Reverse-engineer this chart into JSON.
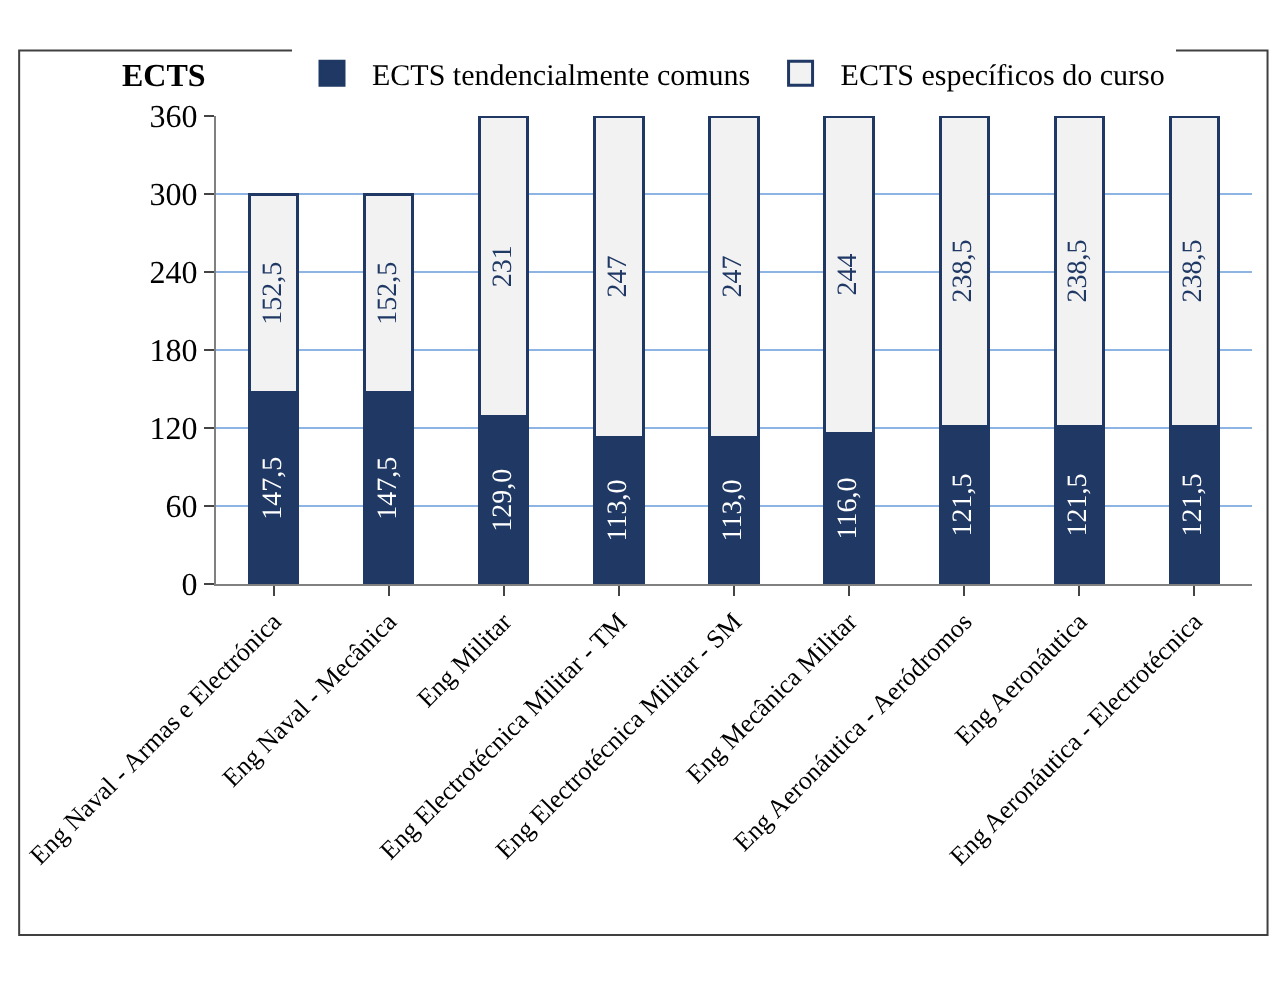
{
  "chart_data": {
    "type": "bar",
    "stacked": true,
    "ylabel": "ECTS",
    "categories": [
      "Eng Naval - Armas e Electrónica",
      "Eng Naval - Mecânica",
      "Eng Militar",
      "Eng Electrotécnica Militar - TM",
      "Eng Electrotécnica Militar - SM",
      "Eng Mecânica Militar",
      "Eng Aeronáutica - Aeródromos",
      "Eng Aeronáutica",
      "Eng Aeronáutica - Electrotécnica"
    ],
    "series": [
      {
        "name": "ECTS tendencialmente comuns",
        "color": "#1f3864",
        "values": [
          147.5,
          147.5,
          129,
          113,
          113,
          116,
          121.5,
          121.5,
          121.5
        ],
        "value_labels": [
          "147,5",
          "147,5",
          "129,0",
          "113,0",
          "113,0",
          "116,0",
          "121,5",
          "121,5",
          "121,5"
        ]
      },
      {
        "name": "ECTS específicos do curso",
        "color": "#f2f2f2",
        "values": [
          152.5,
          152.5,
          231,
          247,
          247,
          244,
          238.5,
          238.5,
          238.5
        ],
        "value_labels": [
          "152,5",
          "152,5",
          "231",
          "247",
          "247",
          "244",
          "238,5",
          "238,5",
          "238,5"
        ]
      }
    ],
    "ylim": [
      0,
      360
    ],
    "yticks": [
      0,
      60,
      120,
      180,
      240,
      300,
      360
    ],
    "grid": "y",
    "legend": "top"
  }
}
